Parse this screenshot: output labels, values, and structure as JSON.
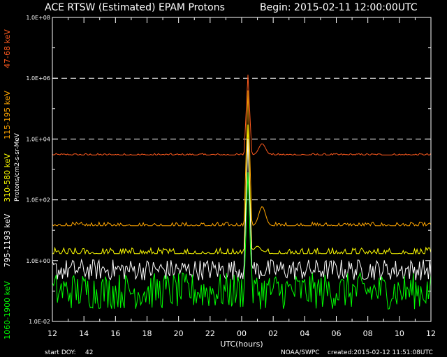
{
  "header": {
    "title": "ACE RTSW (Estimated) EPAM Protons",
    "begin": "Begin: 2015-02-11 12:00:00UTC"
  },
  "footer": {
    "start_doy_label": "start DOY:",
    "start_doy_value": "42",
    "source": "NOAA/SWPC",
    "created": "created:2015-02-12 11:51:08UTC"
  },
  "chart_data": {
    "type": "line",
    "title": "ACE RTSW (Estimated) EPAM Protons",
    "xlabel": "UTC(hours)",
    "ylabel": "Protons/cm2-s-sr-MeV",
    "x_range_hours": [
      0,
      24
    ],
    "x_tick_labels": [
      "12",
      "14",
      "16",
      "18",
      "20",
      "22",
      "00",
      "02",
      "04",
      "06",
      "08",
      "10",
      "12"
    ],
    "yscale": "log",
    "ylim": [
      0.01,
      100000000
    ],
    "y_tick_labels": [
      "1.0E-02",
      "1.0E+00",
      "1.0E+02",
      "1.0E+04",
      "1.0E+06",
      "1.0E+08"
    ],
    "grid": "dashed horizontal at 1.0E+02, 1.0E+04, 1.0E+06",
    "colors": {
      "background": "#000000",
      "axes": "#ffffff",
      "grid": "#ffffff",
      "ch_47_68": "#ff5a1e",
      "ch_115_195": "#ffa500",
      "ch_310_580": "#ffff00",
      "ch_795_1193": "#ffffff",
      "ch_1060_1900": "#00ff00"
    },
    "series": [
      {
        "name": "47-68 keV",
        "color_key": "ch_47_68",
        "baseline": 3000,
        "noise": 0.05,
        "spike_peak": 1300000,
        "bump_peak": 7000,
        "bump_at_hours": 13.3
      },
      {
        "name": "115-195 keV",
        "color_key": "ch_115_195",
        "baseline": 14,
        "noise": 0.12,
        "spike_peak": 400000,
        "bump_peak": 60,
        "bump_at_hours": 13.3
      },
      {
        "name": "310-580 keV",
        "color_key": "ch_310_580",
        "baseline": 1.7,
        "noise": 0.2,
        "spike_peak": 30000,
        "bump_peak": 3,
        "bump_at_hours": 13.0
      },
      {
        "name": "795-1193 keV",
        "color_key": "ch_795_1193",
        "baseline": 0.5,
        "noise": 0.35,
        "spike_peak": 10000,
        "bump_peak": 0,
        "bump_at_hours": 0
      },
      {
        "name": "1060-1900 keV",
        "color_key": "ch_1060_1900",
        "baseline": 0.1,
        "noise": 0.6,
        "spike_peak": 800,
        "bump_peak": 0,
        "bump_at_hours": 0
      }
    ],
    "spike_at_hours": 12.4
  }
}
